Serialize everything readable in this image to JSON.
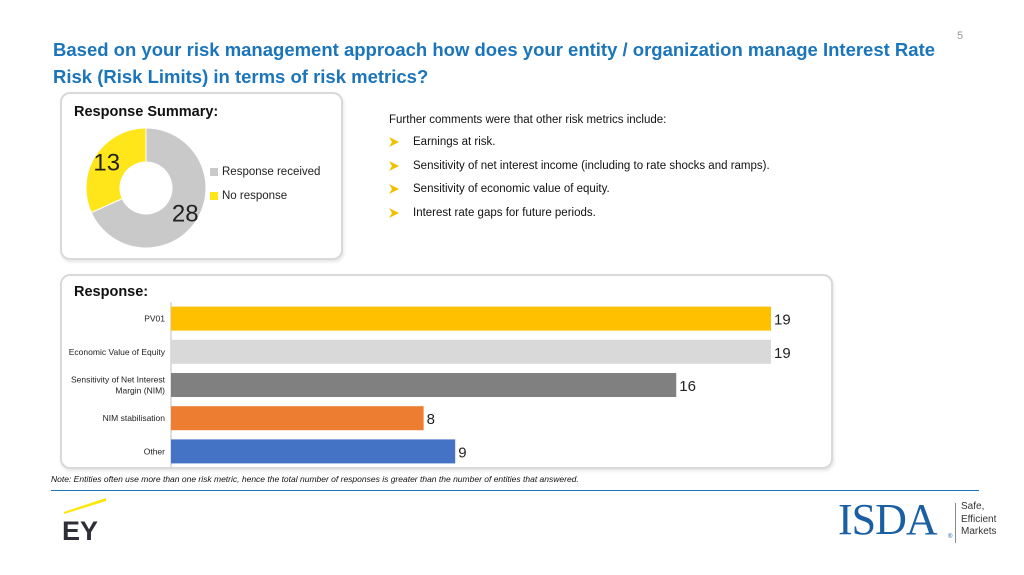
{
  "page_number": "5",
  "title": "Based on your risk management approach how does your entity / organization manage Interest Rate Risk (Risk Limits) in terms of risk metrics?",
  "summary": {
    "heading": "Response Summary:",
    "legend": [
      "Response received",
      "No response"
    ]
  },
  "comments": {
    "intro": "Further comments were that other risk metrics include:",
    "items": [
      "Earnings at risk.",
      "Sensitivity of net interest income (including to rate shocks and ramps).",
      "Sensitivity of economic value of equity.",
      "Interest rate gaps for future periods."
    ]
  },
  "response": {
    "heading": "Response:"
  },
  "note": "Note: Entities often use more than one risk metric, hence the total number of responses is greater than the number of entities that answered.",
  "logos": {
    "ey": "EY",
    "isda_word": "ISDA",
    "isda_reg": "®",
    "isda_tagline": [
      "Safe,",
      "Efficient",
      "Markets"
    ]
  },
  "colors": {
    "title": "#1b75bb",
    "response_received": "#c9c9c9",
    "no_response": "#ffe61a",
    "arrow_bullet": "#f0c000"
  },
  "chart_data": [
    {
      "type": "pie",
      "variant": "donut",
      "categories": [
        "Response received",
        "No response"
      ],
      "values": [
        28,
        13
      ],
      "colors": [
        "#c9c9c9",
        "#ffe61a"
      ],
      "legend": "right"
    },
    {
      "type": "bar",
      "orientation": "horizontal",
      "categories": [
        "PV01",
        "Economic Value of Equity",
        "Sensitivity of Net Interest Margin (NIM)",
        "NIM stabilisation",
        "Other"
      ],
      "category_lines": [
        [
          "PV01"
        ],
        [
          "Economic Value of Equity"
        ],
        [
          "Sensitivity of Net Interest",
          "Margin (NIM)"
        ],
        [
          "NIM stabilisation"
        ],
        [
          "Other"
        ]
      ],
      "values": [
        19,
        19,
        16,
        8,
        9
      ],
      "colors": [
        "#ffc000",
        "#d9d9d9",
        "#808080",
        "#ed7d31",
        "#4472c4"
      ],
      "xlim": [
        0,
        19
      ],
      "grid": false,
      "data_labels": true
    }
  ]
}
